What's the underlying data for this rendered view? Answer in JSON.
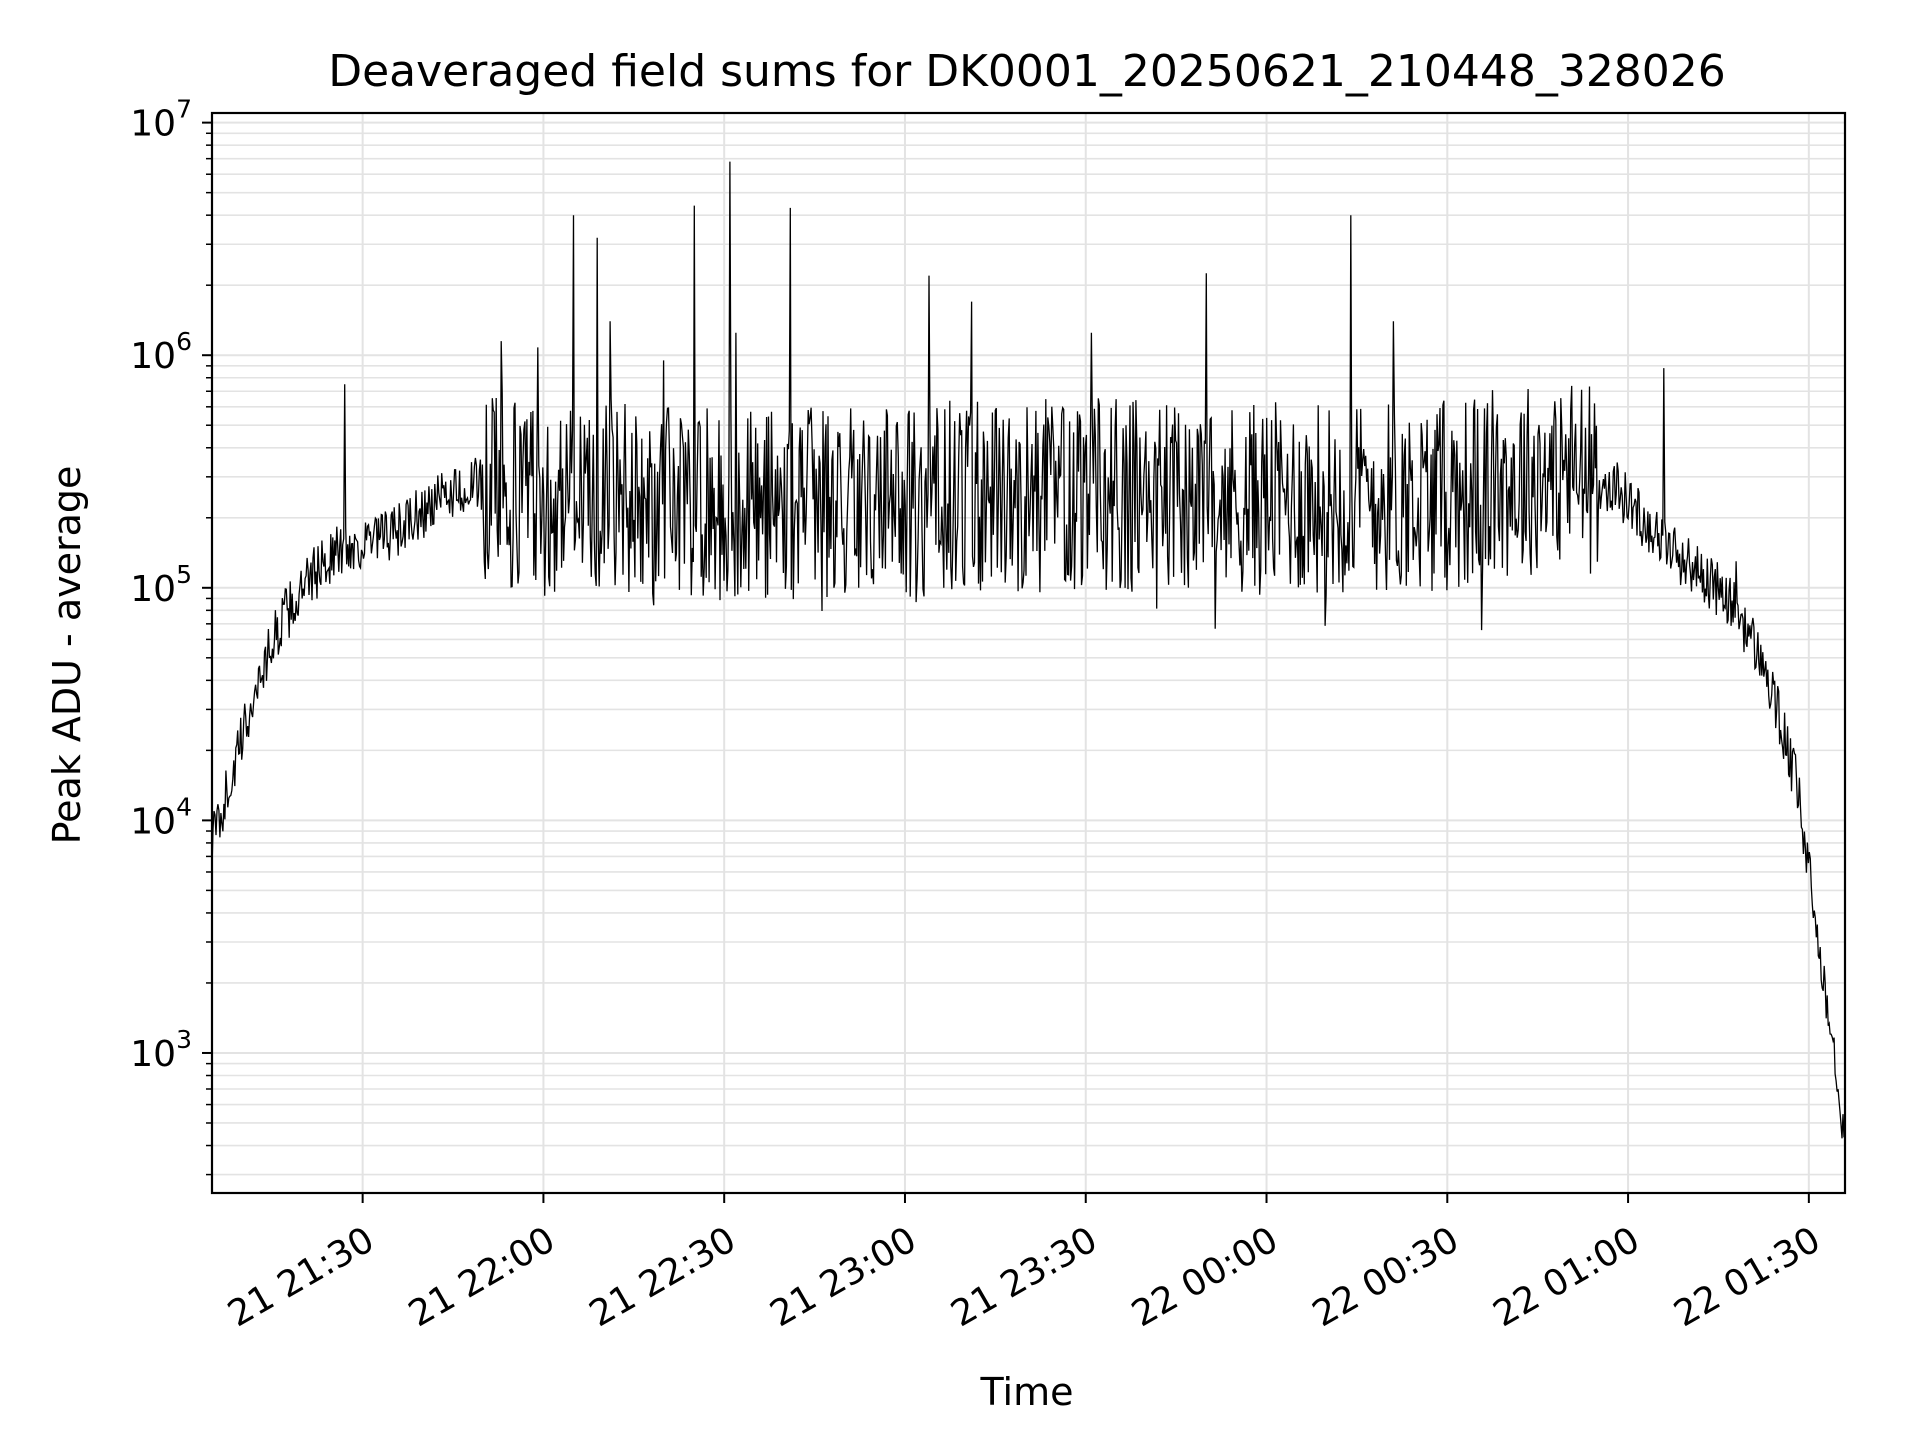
{
  "chart_data": {
    "type": "line",
    "title": "Deaveraged field sums for DK0001_20250621_210448_328026",
    "xlabel": "Time",
    "ylabel": "Peak ADU - average",
    "yscale": "log",
    "xlim": [
      "2025-06-21 21:05",
      "2025-06-22 01:36"
    ],
    "ylim": [
      250,
      11000000
    ],
    "grid": true,
    "line_color": "#000000",
    "grid_color": "#e3e3e3",
    "x_ticks": [
      {
        "label": "21 21:30",
        "value": "2025-06-21 21:30"
      },
      {
        "label": "21 22:00",
        "value": "2025-06-21 22:00"
      },
      {
        "label": "21 22:30",
        "value": "2025-06-21 22:30"
      },
      {
        "label": "21 23:00",
        "value": "2025-06-21 23:00"
      },
      {
        "label": "21 23:30",
        "value": "2025-06-21 23:30"
      },
      {
        "label": "22 00:00",
        "value": "2025-06-22 00:00"
      },
      {
        "label": "22 00:30",
        "value": "2025-06-22 00:30"
      },
      {
        "label": "22 01:00",
        "value": "2025-06-22 01:00"
      },
      {
        "label": "22 01:30",
        "value": "2025-06-22 01:30"
      }
    ],
    "y_ticks": [
      {
        "base": "10",
        "exp": "3",
        "value": 1000
      },
      {
        "base": "10",
        "exp": "4",
        "value": 10000
      },
      {
        "base": "10",
        "exp": "5",
        "value": 100000
      },
      {
        "base": "10",
        "exp": "6",
        "value": 1000000
      },
      {
        "base": "10",
        "exp": "7",
        "value": 10000000
      }
    ],
    "series": [
      {
        "x": [
          "2025-06-21 21:05",
          "2025-06-21 21:07",
          "2025-06-21 21:09",
          "2025-06-21 21:11",
          "2025-06-21 21:13",
          "2025-06-21 21:15",
          "2025-06-21 21:17",
          "2025-06-21 21:20",
          "2025-06-21 21:22",
          "2025-06-21 21:25",
          "2025-06-21 21:28",
          "2025-06-21 21:31",
          "2025-06-21 21:35",
          "2025-06-21 21:40",
          "2025-06-21 21:45",
          "2025-06-21 21:50",
          "2025-06-21 21:55",
          "2025-06-21 22:00",
          "2025-06-21 22:10",
          "2025-06-21 22:30",
          "2025-06-21 23:00",
          "2025-06-21 23:30",
          "2025-06-22 00:00",
          "2025-06-22 00:30",
          "2025-06-22 00:50",
          "2025-06-22 00:58",
          "2025-06-22 01:03",
          "2025-06-22 01:08",
          "2025-06-22 01:13",
          "2025-06-22 01:18",
          "2025-06-22 01:22",
          "2025-06-22 01:25",
          "2025-06-22 01:28",
          "2025-06-22 01:30",
          "2025-06-22 01:32",
          "2025-06-22 01:34",
          "2025-06-22 01:35",
          "2025-06-22 01:36"
        ],
        "y": [
          8000,
          12000,
          18000,
          28000,
          42000,
          58000,
          75000,
          95000,
          115000,
          140000,
          150000,
          155000,
          170000,
          210000,
          260000,
          280000,
          260000,
          240000,
          250000,
          230000,
          240000,
          250000,
          240000,
          250000,
          320000,
          270000,
          190000,
          140000,
          110000,
          80000,
          50000,
          28000,
          14000,
          6000,
          2500,
          1200,
          700,
          450
        ]
      }
    ],
    "spikes": [
      {
        "x": "2025-06-21 21:27",
        "y": 750000
      },
      {
        "x": "2025-06-21 21:53",
        "y": 1150000
      },
      {
        "x": "2025-06-21 21:59",
        "y": 1080000
      },
      {
        "x": "2025-06-21 22:05",
        "y": 4000000
      },
      {
        "x": "2025-06-21 22:09",
        "y": 3200000
      },
      {
        "x": "2025-06-21 22:11",
        "y": 1400000
      },
      {
        "x": "2025-06-21 22:20",
        "y": 950000
      },
      {
        "x": "2025-06-21 22:25",
        "y": 4400000
      },
      {
        "x": "2025-06-21 22:31",
        "y": 6800000
      },
      {
        "x": "2025-06-21 22:32",
        "y": 1250000
      },
      {
        "x": "2025-06-21 22:41",
        "y": 4300000
      },
      {
        "x": "2025-06-21 23:04",
        "y": 2200000
      },
      {
        "x": "2025-06-21 23:11",
        "y": 1700000
      },
      {
        "x": "2025-06-21 23:31",
        "y": 1250000
      },
      {
        "x": "2025-06-21 23:50",
        "y": 2250000
      },
      {
        "x": "2025-06-22 00:14",
        "y": 4000000
      },
      {
        "x": "2025-06-22 00:21",
        "y": 1400000
      },
      {
        "x": "2025-06-22 01:06",
        "y": 880000
      },
      {
        "x": "2025-06-22 01:18",
        "y": 130000
      }
    ]
  }
}
